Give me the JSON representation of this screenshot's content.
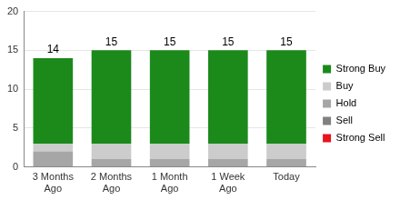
{
  "chart_data": {
    "type": "bar",
    "stacked": true,
    "categories": [
      "3 Months Ago",
      "2 Months Ago",
      "1 Month Ago",
      "1 Week Ago",
      "Today"
    ],
    "series": [
      {
        "name": "Strong Buy",
        "color": "#1b8a1b",
        "values": [
          11,
          12,
          12,
          12,
          12
        ]
      },
      {
        "name": "Buy",
        "color": "#cccccc",
        "values": [
          1,
          2,
          2,
          2,
          2
        ]
      },
      {
        "name": "Hold",
        "color": "#a6a6a6",
        "values": [
          2,
          1,
          1,
          1,
          1
        ]
      },
      {
        "name": "Sell",
        "color": "#808080",
        "values": [
          0,
          0,
          0,
          0,
          0
        ]
      },
      {
        "name": "Strong Sell",
        "color": "#e8141e",
        "values": [
          0,
          0,
          0,
          0,
          0
        ]
      }
    ],
    "totals": [
      14,
      15,
      15,
      15,
      15
    ],
    "ylim": [
      0,
      20
    ],
    "yticks": [
      0,
      5,
      10,
      15,
      20
    ],
    "grid": true,
    "legend": "right"
  }
}
